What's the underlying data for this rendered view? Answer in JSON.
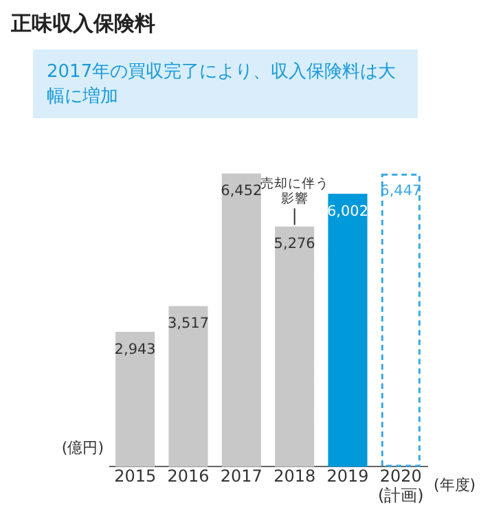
{
  "chart_data": {
    "type": "bar",
    "title": "正味収入保険料",
    "subtitle": "2017年の買収完了により、収入保険料は大幅に増加",
    "categories": [
      "2015",
      "2016",
      "2017",
      "2018",
      "2019",
      "2020\n(計画)"
    ],
    "series": [
      {
        "colors": [
          "#c8c8c8",
          "#c8c8c8",
          "#c8c8c8",
          "#c8c8c8",
          "#0099d9",
          null
        ],
        "values": [
          2943,
          3517,
          6452,
          5276,
          6002,
          null
        ],
        "value_labels": [
          "2,943",
          "3,517",
          "6,452",
          "5,276",
          "6,002",
          null
        ]
      },
      {
        "color": "#3aa8e0",
        "line_style": "dashed",
        "values": [
          null,
          null,
          null,
          null,
          null,
          6447
        ],
        "value_labels": [
          null,
          null,
          null,
          null,
          null,
          "6,447"
        ]
      }
    ],
    "relative": false,
    "xlabel": "(年度)",
    "ylabel": "(億円)",
    "annotations": [
      {
        "text": "売却に伴う影響",
        "x": "2018",
        "y": 5276
      }
    ]
  }
}
